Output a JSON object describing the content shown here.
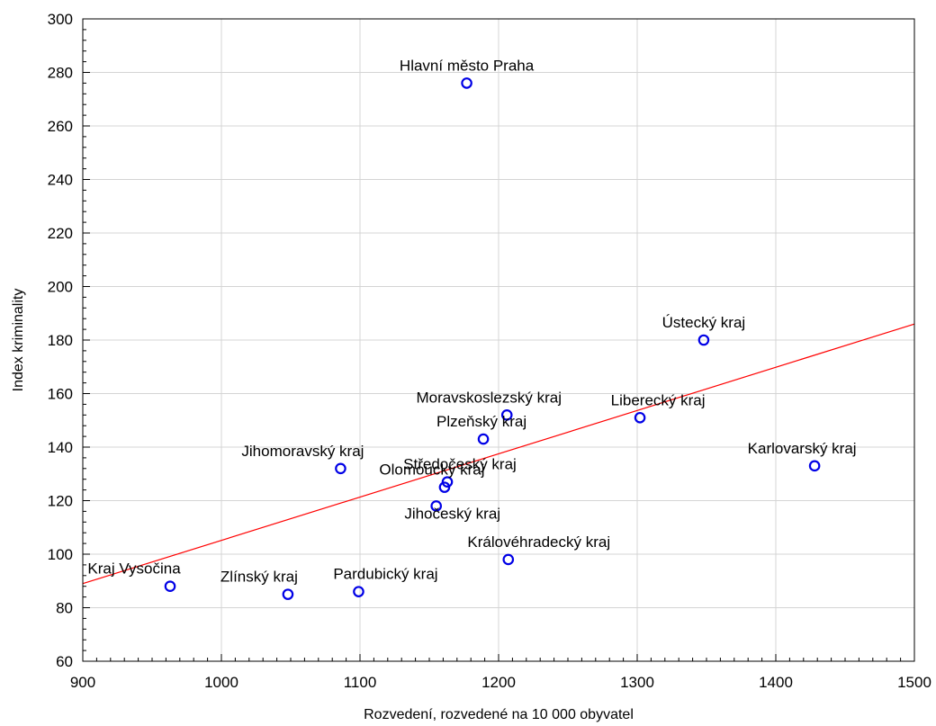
{
  "chart_data": {
    "type": "scatter",
    "xlabel": "Rozvedení, rozvedené na 10 000 obyvatel",
    "ylabel": "Index kriminality",
    "xlim": [
      900,
      1500
    ],
    "ylim": [
      60,
      300
    ],
    "x_ticks": [
      900,
      1000,
      1100,
      1200,
      1300,
      1400,
      1500
    ],
    "y_ticks": [
      60,
      80,
      100,
      120,
      140,
      160,
      180,
      200,
      220,
      240,
      260,
      280,
      300
    ],
    "grid": true,
    "points": [
      {
        "label": "Hlavní město Praha",
        "x": 1177,
        "y": 276
      },
      {
        "label": "Ústecký kraj",
        "x": 1348,
        "y": 180
      },
      {
        "label": "Moravskoslezský kraj",
        "x": 1206,
        "y": 152
      },
      {
        "label": "Liberecký kraj",
        "x": 1302,
        "y": 151
      },
      {
        "label": "Plzeňský kraj",
        "x": 1189,
        "y": 143
      },
      {
        "label": "Karlovarský kraj",
        "x": 1428,
        "y": 133
      },
      {
        "label": "Jihomoravský kraj",
        "x": 1086,
        "y": 132
      },
      {
        "label": "Středočeský kraj",
        "x": 1163,
        "y": 127
      },
      {
        "label": "Olomoucký kraj",
        "x": 1161,
        "y": 125
      },
      {
        "label": "Jihočeský kraj",
        "x": 1155,
        "y": 118
      },
      {
        "label": "Královéhradecký kraj",
        "x": 1207,
        "y": 98
      },
      {
        "label": "Kraj Vysočina",
        "x": 963,
        "y": 88
      },
      {
        "label": "Zlínský kraj",
        "x": 1048,
        "y": 85
      },
      {
        "label": "Pardubický kraj",
        "x": 1099,
        "y": 86
      }
    ],
    "fit_line": {
      "x": [
        900,
        1500
      ],
      "y": [
        89,
        186
      ]
    },
    "colors": {
      "points": "#0000e6",
      "fit_line": "#ff0000",
      "grid": "#d4d4d4"
    }
  }
}
